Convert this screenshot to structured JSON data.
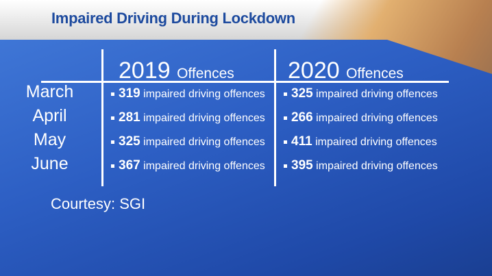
{
  "title": "Impaired Driving During Lockdown",
  "headers": [
    {
      "year": "2019",
      "label": "Offences"
    },
    {
      "year": "2020",
      "label": "Offences"
    }
  ],
  "rows": [
    {
      "month": "March",
      "y2019": "319",
      "y2020": "325"
    },
    {
      "month": "April",
      "y2019": "281",
      "y2020": "266"
    },
    {
      "month": "May",
      "y2019": "325",
      "y2020": "411"
    },
    {
      "month": "June",
      "y2019": "367",
      "y2020": "395"
    }
  ],
  "unit_text": "impaired driving offences",
  "courtesy": "Courtesy: SGI"
}
